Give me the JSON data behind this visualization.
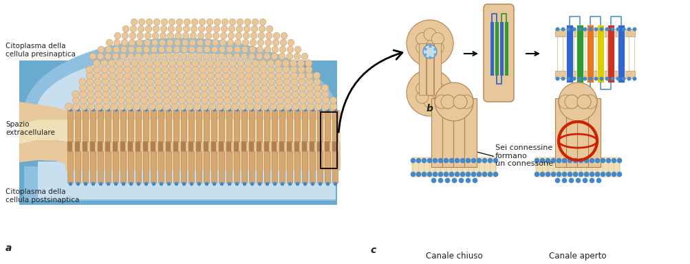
{
  "background_color": "#ffffff",
  "fig_width": 10.04,
  "fig_height": 3.84,
  "labels": {
    "citoplasma_pre": "Citoplasma della\ncellula presinaptica",
    "spazio": "Spazio\nextracellulare",
    "citoplasma_post": "Citoplasma della\ncellula postsinaptica",
    "label_a": "a",
    "label_b": "b",
    "label_c": "c",
    "canale_chiuso": "Canale chiuso",
    "canale_aperto": "Canale aperto",
    "sei_connessine": "Sei connessine\nformano\nun connessone"
  },
  "colors": {
    "cell_fill_light": "#c8dff0",
    "cell_fill_mid": "#90c0df",
    "cell_fill_dark": "#6aaace",
    "membrane_tan": "#e8c89a",
    "membrane_tan2": "#ddb87a",
    "connector_tan": "#d4a870",
    "connector_dark": "#b08050",
    "blue_dot": "#4488cc",
    "blue_dot_light": "#66aadd",
    "extracell_light": "#f0e0b8",
    "extracell_mid": "#e8d4a8",
    "red_ring": "#cc2200",
    "arrow_color": "#111111",
    "text_color": "#222222",
    "white": "#ffffff",
    "col_blue": "#3366cc",
    "col_green": "#339933",
    "col_orange": "#e87722",
    "col_yellow": "#ddcc00",
    "col_red": "#cc3322",
    "bump_edge": "#c8a070"
  }
}
